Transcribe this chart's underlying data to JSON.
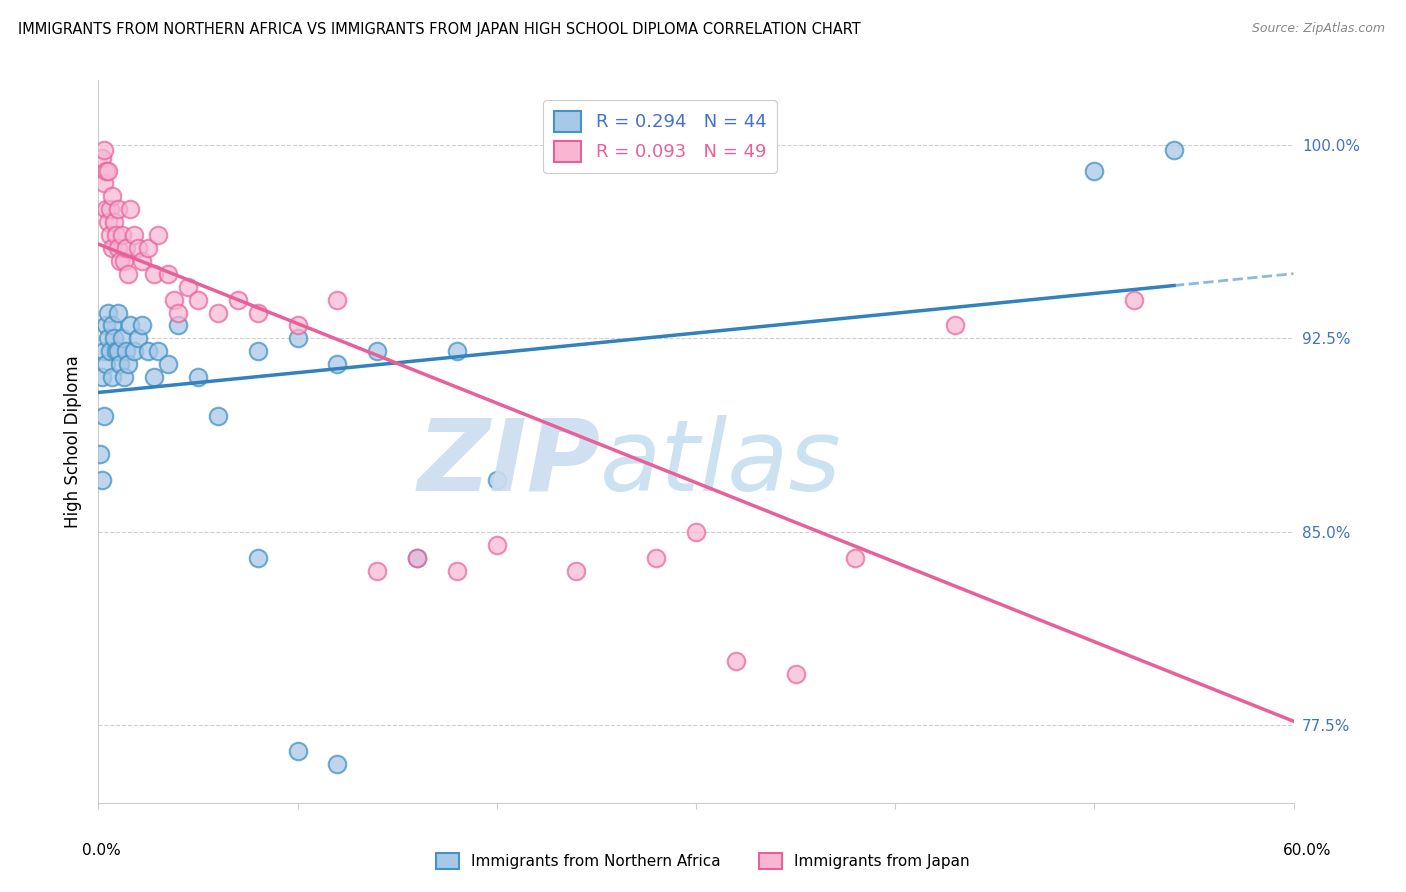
{
  "title": "IMMIGRANTS FROM NORTHERN AFRICA VS IMMIGRANTS FROM JAPAN HIGH SCHOOL DIPLOMA CORRELATION CHART",
  "source": "Source: ZipAtlas.com",
  "ylabel": "High School Diploma",
  "legend_blue_r": "R = 0.294",
  "legend_blue_n": "N = 44",
  "legend_pink_r": "R = 0.093",
  "legend_pink_n": "N = 49",
  "blue_color": "#a8c8e8",
  "blue_edge_color": "#4393c3",
  "pink_color": "#f7b6d2",
  "pink_edge_color": "#e8609a",
  "blue_line_color": "#3182bd",
  "pink_line_color": "#e8609a",
  "blue_scatter": [
    [
      0.001,
      0.88
    ],
    [
      0.002,
      0.87
    ],
    [
      0.002,
      0.91
    ],
    [
      0.003,
      0.895
    ],
    [
      0.003,
      0.92
    ],
    [
      0.004,
      0.93
    ],
    [
      0.004,
      0.915
    ],
    [
      0.005,
      0.935
    ],
    [
      0.005,
      0.925
    ],
    [
      0.006,
      0.92
    ],
    [
      0.007,
      0.91
    ],
    [
      0.007,
      0.93
    ],
    [
      0.008,
      0.925
    ],
    [
      0.009,
      0.92
    ],
    [
      0.01,
      0.935
    ],
    [
      0.01,
      0.92
    ],
    [
      0.011,
      0.915
    ],
    [
      0.012,
      0.925
    ],
    [
      0.013,
      0.91
    ],
    [
      0.014,
      0.92
    ],
    [
      0.015,
      0.915
    ],
    [
      0.016,
      0.93
    ],
    [
      0.018,
      0.92
    ],
    [
      0.02,
      0.925
    ],
    [
      0.022,
      0.93
    ],
    [
      0.025,
      0.92
    ],
    [
      0.028,
      0.91
    ],
    [
      0.03,
      0.92
    ],
    [
      0.035,
      0.915
    ],
    [
      0.04,
      0.93
    ],
    [
      0.05,
      0.91
    ],
    [
      0.06,
      0.895
    ],
    [
      0.08,
      0.92
    ],
    [
      0.1,
      0.925
    ],
    [
      0.12,
      0.915
    ],
    [
      0.14,
      0.92
    ],
    [
      0.16,
      0.84
    ],
    [
      0.18,
      0.92
    ],
    [
      0.2,
      0.87
    ],
    [
      0.08,
      0.84
    ],
    [
      0.1,
      0.765
    ],
    [
      0.12,
      0.76
    ],
    [
      0.5,
      0.99
    ],
    [
      0.54,
      0.998
    ]
  ],
  "pink_scatter": [
    [
      0.002,
      0.995
    ],
    [
      0.003,
      0.998
    ],
    [
      0.003,
      0.985
    ],
    [
      0.004,
      0.99
    ],
    [
      0.004,
      0.975
    ],
    [
      0.005,
      0.99
    ],
    [
      0.005,
      0.97
    ],
    [
      0.006,
      0.975
    ],
    [
      0.006,
      0.965
    ],
    [
      0.007,
      0.98
    ],
    [
      0.007,
      0.96
    ],
    [
      0.008,
      0.97
    ],
    [
      0.009,
      0.965
    ],
    [
      0.01,
      0.975
    ],
    [
      0.01,
      0.96
    ],
    [
      0.011,
      0.955
    ],
    [
      0.012,
      0.965
    ],
    [
      0.013,
      0.955
    ],
    [
      0.014,
      0.96
    ],
    [
      0.015,
      0.95
    ],
    [
      0.016,
      0.975
    ],
    [
      0.018,
      0.965
    ],
    [
      0.02,
      0.96
    ],
    [
      0.022,
      0.955
    ],
    [
      0.025,
      0.96
    ],
    [
      0.028,
      0.95
    ],
    [
      0.03,
      0.965
    ],
    [
      0.035,
      0.95
    ],
    [
      0.038,
      0.94
    ],
    [
      0.04,
      0.935
    ],
    [
      0.045,
      0.945
    ],
    [
      0.05,
      0.94
    ],
    [
      0.06,
      0.935
    ],
    [
      0.07,
      0.94
    ],
    [
      0.08,
      0.935
    ],
    [
      0.1,
      0.93
    ],
    [
      0.12,
      0.94
    ],
    [
      0.14,
      0.835
    ],
    [
      0.16,
      0.84
    ],
    [
      0.18,
      0.835
    ],
    [
      0.2,
      0.845
    ],
    [
      0.24,
      0.835
    ],
    [
      0.28,
      0.84
    ],
    [
      0.3,
      0.85
    ],
    [
      0.32,
      0.8
    ],
    [
      0.35,
      0.795
    ],
    [
      0.38,
      0.84
    ],
    [
      0.43,
      0.93
    ],
    [
      0.52,
      0.94
    ]
  ],
  "xlim": [
    0.0,
    0.6
  ],
  "ylim": [
    0.745,
    1.025
  ],
  "yticks": [
    0.775,
    0.85,
    0.925,
    1.0
  ],
  "ytick_labels": [
    "77.5%",
    "85.0%",
    "92.5%",
    "100.0%"
  ],
  "background_color": "#ffffff",
  "watermark_zip": "ZIP",
  "watermark_atlas": "atlas",
  "watermark_color_zip": "#ccddf0",
  "watermark_color_atlas": "#c8dff0",
  "watermark_fontsize": 72
}
